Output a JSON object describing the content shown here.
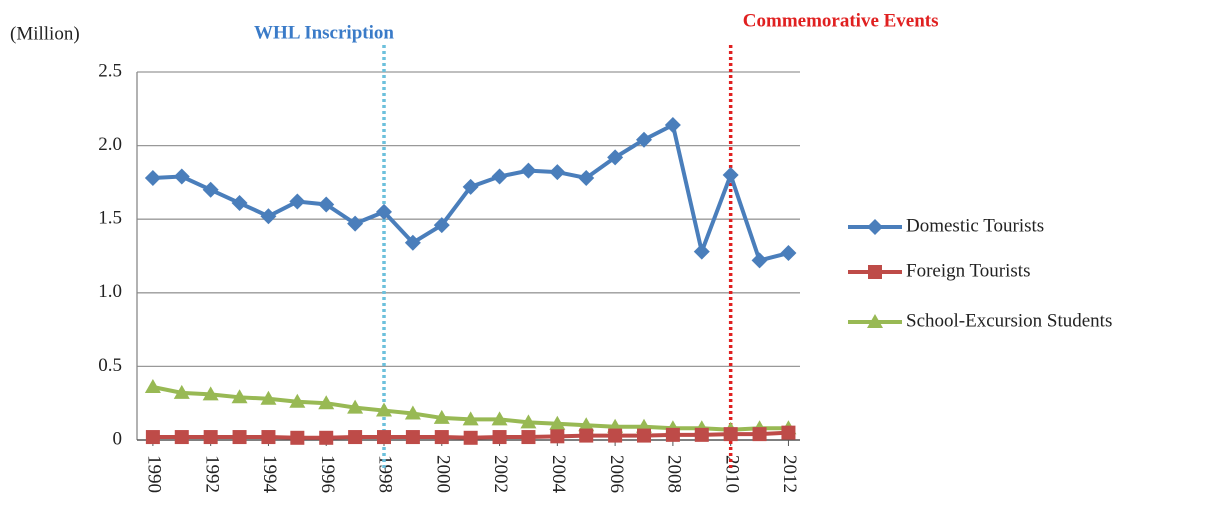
{
  "chart_data": {
    "type": "line",
    "y_label": "(Million)",
    "x": [
      1990,
      1991,
      1992,
      1993,
      1994,
      1995,
      1996,
      1997,
      1998,
      1999,
      2000,
      2001,
      2002,
      2003,
      2004,
      2005,
      2006,
      2007,
      2008,
      2009,
      2010,
      2011,
      2012
    ],
    "xlim": [
      1989.45,
      2012.4
    ],
    "xticks": [
      1990,
      1992,
      1994,
      1996,
      1998,
      2000,
      2002,
      2004,
      2006,
      2008,
      2010,
      2012
    ],
    "ylim": [
      0,
      2.5
    ],
    "yticks": [
      0,
      0.5,
      {
        "value": 1,
        "label": "1.0"
      },
      1.5,
      {
        "value": 2,
        "label": "2.0"
      },
      2.5
    ],
    "grid": true,
    "legend": "right",
    "series": [
      {
        "name": "Domestic Tourists",
        "color": "#4a7ebb",
        "marker": "diamond",
        "values": [
          1.78,
          1.79,
          1.7,
          1.61,
          1.52,
          1.62,
          1.6,
          1.47,
          1.55,
          1.34,
          1.46,
          1.72,
          1.79,
          1.83,
          1.82,
          1.78,
          1.92,
          2.04,
          2.14,
          1.28,
          1.8,
          1.22,
          1.27
        ]
      },
      {
        "name": "Foreign Tourists",
        "color": "#be4b48",
        "marker": "square",
        "values": [
          0.02,
          0.02,
          0.02,
          0.02,
          0.02,
          0.015,
          0.015,
          0.02,
          0.02,
          0.02,
          0.02,
          0.015,
          0.02,
          0.02,
          0.025,
          0.03,
          0.03,
          0.03,
          0.035,
          0.035,
          0.04,
          0.04,
          0.05
        ]
      },
      {
        "name": "School-Excursion Students",
        "color": "#98b954",
        "marker": "triangle",
        "values": [
          0.36,
          0.32,
          0.31,
          0.29,
          0.28,
          0.26,
          0.25,
          0.22,
          0.2,
          0.18,
          0.15,
          0.14,
          0.14,
          0.12,
          0.11,
          0.1,
          0.09,
          0.09,
          0.08,
          0.08,
          0.07,
          0.08,
          0.08
        ]
      }
    ],
    "annotations": [
      {
        "text": "WHL Inscription",
        "x": 1998,
        "color": "#3a7bc8",
        "line_color": "#6cc0dc"
      },
      {
        "text": "Commemorative Events",
        "x": 2010,
        "color": "#e02020",
        "line_color": "#e02020"
      }
    ]
  }
}
